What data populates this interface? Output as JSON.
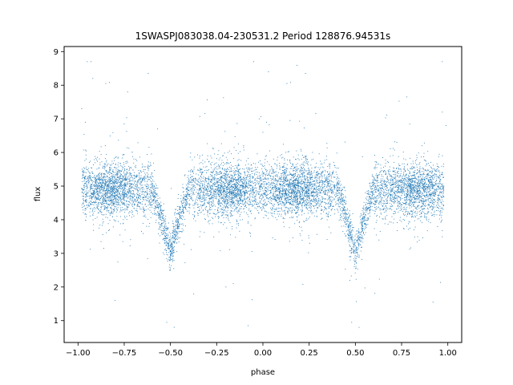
{
  "chart_data": {
    "type": "scatter",
    "title": "1SWASPJ083038.04-230531.2 Period 128876.94531s",
    "xlabel": "phase",
    "ylabel": "flux",
    "xlim": [
      -1.075,
      1.075
    ],
    "ylim": [
      0.35,
      9.15
    ],
    "xticks": [
      -1.0,
      -0.75,
      -0.5,
      -0.25,
      0.0,
      0.25,
      0.5,
      0.75,
      1.0
    ],
    "xtick_labels": [
      "−1.00",
      "−0.75",
      "−0.50",
      "−0.25",
      "0.00",
      "0.25",
      "0.50",
      "0.75",
      "1.00"
    ],
    "yticks": [
      1,
      2,
      3,
      4,
      5,
      6,
      7,
      8,
      9
    ],
    "ytick_labels": [
      "1",
      "2",
      "3",
      "4",
      "5",
      "6",
      "7",
      "8",
      "9"
    ],
    "grid": false,
    "marker_color": "#1f77b4",
    "curve_shape": {
      "baseline_flux": 4.9,
      "eclipse_phases": [
        -0.5,
        0.5
      ],
      "eclipse_min_flux": 3.0,
      "eclipse_half_width": 0.1,
      "scatter_sd": 0.4,
      "point_count": 9000
    },
    "sample_points": [
      {
        "x": -0.95,
        "y": 8.7
      },
      {
        "x": -0.93,
        "y": 8.7
      },
      {
        "x": -0.85,
        "y": 8.05
      },
      {
        "x": -0.83,
        "y": 8.08
      },
      {
        "x": -0.62,
        "y": 8.35
      },
      {
        "x": -0.92,
        "y": 8.2
      },
      {
        "x": 0.03,
        "y": 8.4
      },
      {
        "x": 0.13,
        "y": 8.05
      },
      {
        "x": 0.15,
        "y": 8.08
      },
      {
        "x": 0.23,
        "y": 8.35
      },
      {
        "x": 0.97,
        "y": 8.7
      },
      {
        "x": -0.05,
        "y": 8.7
      },
      {
        "x": -0.8,
        "y": 1.6
      },
      {
        "x": -0.52,
        "y": 0.95
      },
      {
        "x": -0.48,
        "y": 0.8
      },
      {
        "x": 0.48,
        "y": 0.95
      },
      {
        "x": 0.52,
        "y": 0.8
      },
      {
        "x": 0.92,
        "y": 1.55
      },
      {
        "x": -0.08,
        "y": 0.85
      },
      {
        "x": -0.2,
        "y": 2.0
      },
      {
        "x": 0.47,
        "y": 2.2
      },
      {
        "x": -0.5,
        "y": 2.5
      },
      {
        "x": 0.5,
        "y": 2.55
      },
      {
        "x": -0.98,
        "y": 7.3
      },
      {
        "x": -0.96,
        "y": 6.9
      },
      {
        "x": 0.99,
        "y": 6.8
      },
      {
        "x": 0.97,
        "y": 7.2
      },
      {
        "x": 0.0,
        "y": 6.6
      },
      {
        "x": 0.02,
        "y": 6.9
      },
      {
        "x": -0.02,
        "y": 7.0
      }
    ]
  }
}
